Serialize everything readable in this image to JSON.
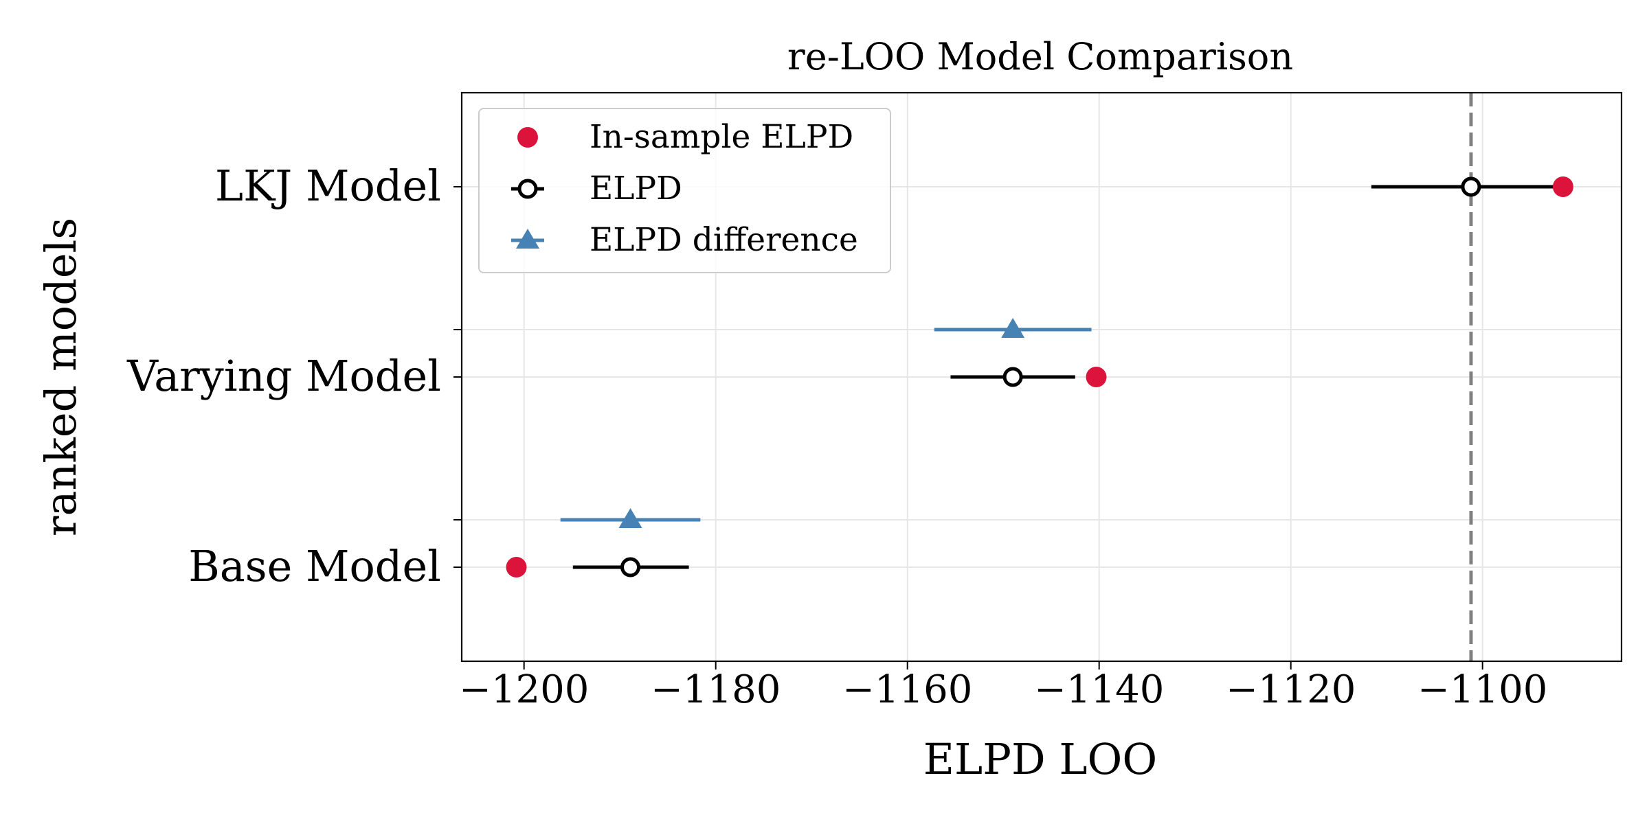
{
  "chart_data": {
    "type": "scatter",
    "title": "re-LOO Model Comparison",
    "xlabel": "ELPD LOO",
    "ylabel": "ranked models",
    "xlim": [
      -1206.5,
      -1085.5
    ],
    "x_ticks": [
      -1200,
      -1180,
      -1160,
      -1140,
      -1120,
      -1100
    ],
    "x_tick_labels": [
      "−1200",
      "−1180",
      "−1160",
      "−1140",
      "−1120",
      "−1100"
    ],
    "grid": true,
    "legend_position": "top-left",
    "reference_line": {
      "x": -1101.2,
      "style": "dashed",
      "color": "#808080"
    },
    "models": [
      {
        "label": "LKJ Model",
        "in_sample_elpd": -1091.6,
        "elpd": -1101.2,
        "elpd_err": [
          -1111.6,
          -1092.0
        ],
        "elpd_diff": null,
        "diff_err": null
      },
      {
        "label": "Varying Model",
        "in_sample_elpd": -1140.3,
        "elpd": -1149.0,
        "elpd_err": [
          -1155.5,
          -1142.5
        ],
        "elpd_diff": -1149.0,
        "diff_err": [
          -1157.2,
          -1140.8
        ]
      },
      {
        "label": "Base Model",
        "in_sample_elpd": -1200.8,
        "elpd": -1188.9,
        "elpd_err": [
          -1194.9,
          -1182.8
        ],
        "elpd_diff": -1188.9,
        "diff_err": [
          -1196.2,
          -1181.6
        ]
      }
    ],
    "series": [
      {
        "name": "In-sample ELPD",
        "color": "#dc143c",
        "marker": "filled-circle"
      },
      {
        "name": "ELPD",
        "color": "#000000",
        "marker": "open-circle-errorbar"
      },
      {
        "name": "ELPD difference",
        "color": "#4682b4",
        "marker": "triangle-errorbar"
      }
    ]
  }
}
